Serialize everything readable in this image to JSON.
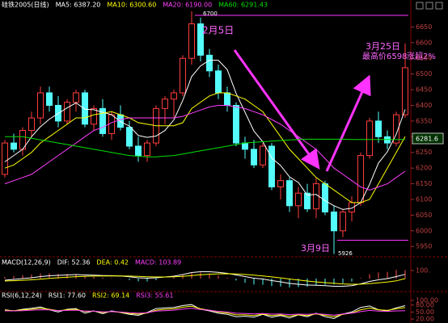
{
  "chart_data": [
    {
      "type": "candlestick",
      "title": "硅铁2005(日线)",
      "open": [
        6180,
        6280,
        6260,
        6320,
        6360,
        6440,
        6400,
        6350,
        6410,
        6440,
        6340,
        6390,
        6310,
        6370,
        6330,
        6270,
        6240,
        6280,
        6390,
        6420,
        6440,
        6550,
        6660,
        6560,
        6510,
        6440,
        6400,
        6280,
        6260,
        6210,
        6270,
        6140,
        6160,
        6080,
        6120,
        6070,
        6150,
        6060,
        6000,
        6060,
        6090,
        6240,
        6350,
        6300,
        6280,
        6370
      ],
      "high": [
        6290,
        6310,
        6330,
        6380,
        6460,
        6460,
        6430,
        6420,
        6450,
        6450,
        6400,
        6420,
        6380,
        6400,
        6350,
        6300,
        6290,
        6400,
        6430,
        6450,
        6560,
        6700,
        6680,
        6580,
        6530,
        6460,
        6410,
        6300,
        6290,
        6280,
        6280,
        6180,
        6170,
        6140,
        6150,
        6170,
        6160,
        6080,
        6070,
        6110,
        6250,
        6360,
        6380,
        6320,
        6380,
        6598
      ],
      "low": [
        6170,
        6250,
        6240,
        6300,
        6340,
        6380,
        6330,
        6340,
        6380,
        6330,
        6320,
        6300,
        6290,
        6320,
        6260,
        6220,
        6220,
        6270,
        6340,
        6360,
        6430,
        6530,
        6540,
        6490,
        6420,
        6380,
        6270,
        6230,
        6200,
        6200,
        6130,
        6100,
        6060,
        6040,
        6060,
        6040,
        6050,
        5926,
        5980,
        6030,
        6080,
        6230,
        6280,
        6260,
        6270,
        6360
      ],
      "close": [
        6280,
        6260,
        6320,
        6360,
        6440,
        6400,
        6350,
        6410,
        6440,
        6340,
        6390,
        6310,
        6370,
        6330,
        6270,
        6240,
        6280,
        6390,
        6420,
        6440,
        6550,
        6660,
        6560,
        6510,
        6440,
        6400,
        6280,
        6260,
        6210,
        6270,
        6140,
        6160,
        6080,
        6120,
        6070,
        6150,
        6060,
        6000,
        6060,
        6090,
        6240,
        6350,
        6300,
        6280,
        6370,
        6520
      ],
      "up_color": "#ff3c3c",
      "down_color": "#54fcfc",
      "series": [
        {
          "name": "MA5: 6387.20",
          "color": "#ffffff",
          "values": [
            6220,
            6240,
            6260,
            6300,
            6332,
            6356,
            6374,
            6392,
            6408,
            6388,
            6386,
            6378,
            6370,
            6348,
            6334,
            6304,
            6298,
            6302,
            6320,
            6354,
            6416,
            6492,
            6526,
            6544,
            6544,
            6514,
            6438,
            6378,
            6318,
            6284,
            6232,
            6208,
            6172,
            6154,
            6114,
            6116,
            6096,
            6080,
            6068,
            6072,
            6090,
            6148,
            6216,
            6252,
            6308,
            6387.2
          ]
        },
        {
          "name": "MA10: 6300.60",
          "color": "#ffff00",
          "values": [
            6200,
            6210,
            6230,
            6250,
            6280,
            6300,
            6320,
            6340,
            6360,
            6360,
            6370,
            6375,
            6380,
            6370,
            6360,
            6345,
            6340,
            6335,
            6335,
            6335,
            6345,
            6390,
            6410,
            6430,
            6440,
            6440,
            6430,
            6420,
            6400,
            6380,
            6340,
            6300,
            6260,
            6230,
            6200,
            6170,
            6150,
            6130,
            6110,
            6090,
            6090,
            6100,
            6150,
            6200,
            6250,
            6300.6
          ]
        },
        {
          "name": "MA20: 6190.00",
          "color": "#ff40ff",
          "values": [
            6150,
            6160,
            6170,
            6180,
            6200,
            6220,
            6240,
            6260,
            6280,
            6300,
            6320,
            6330,
            6345,
            6355,
            6360,
            6360,
            6360,
            6360,
            6360,
            6360,
            6365,
            6375,
            6385,
            6395,
            6400,
            6400,
            6395,
            6390,
            6380,
            6370,
            6355,
            6340,
            6320,
            6300,
            6280,
            6260,
            6230,
            6200,
            6180,
            6160,
            6140,
            6130,
            6140,
            6150,
            6170,
            6190
          ]
        },
        {
          "name": "MA60: 6291.43",
          "color": "#00e000",
          "values": [
            6300,
            6300,
            6300,
            6295,
            6290,
            6285,
            6280,
            6275,
            6270,
            6265,
            6260,
            6255,
            6250,
            6245,
            6240,
            6238,
            6236,
            6236,
            6238,
            6240,
            6245,
            6250,
            6255,
            6260,
            6265,
            6270,
            6275,
            6280,
            6282,
            6284,
            6286,
            6288,
            6290,
            6291,
            6292,
            6292,
            6292,
            6292,
            6292,
            6291,
            6291,
            6291,
            6291,
            6291,
            6291,
            6291.43
          ]
        }
      ],
      "ylim": [
        5930,
        6700
      ],
      "yticks": [
        6650,
        6600,
        6550,
        6500,
        6450,
        6400,
        6350,
        6300,
        6250,
        6200,
        6150,
        6100,
        6050,
        6000,
        5950
      ],
      "annotations": [
        {
          "text": "2月5日",
          "color": "#ff66ff"
        },
        {
          "text": "6700",
          "color": "#ffffff"
        },
        {
          "text": "3月25日",
          "color": "#ff66ff"
        },
        {
          "text": "最高价6598",
          "color": "#ff66ff"
        },
        {
          "text": "涨超2%",
          "color": "#ff66ff"
        },
        {
          "text": "3月9日",
          "color": "#ff66ff"
        },
        {
          "text": "5926",
          "color": "#ffffff"
        },
        {
          "text": "6281.6",
          "color": "#ffffff"
        }
      ]
    },
    {
      "type": "macd",
      "title": "MACD(12,26,9)",
      "series": [
        {
          "name": "DIF: 52.36",
          "color": "#ffffff",
          "values": [
            -20,
            -10,
            0,
            10,
            25,
            35,
            40,
            45,
            50,
            45,
            42,
            38,
            36,
            32,
            22,
            10,
            5,
            10,
            20,
            30,
            50,
            75,
            85,
            85,
            78,
            65,
            45,
            25,
            5,
            -5,
            -25,
            -40,
            -60,
            -70,
            -80,
            -82,
            -88,
            -95,
            -95,
            -88,
            -65,
            -35,
            -15,
            0,
            25,
            52.36
          ]
        },
        {
          "name": "DEA: 0.42",
          "color": "#ffff00",
          "values": [
            -30,
            -26,
            -21,
            -15,
            -7,
            2,
            10,
            17,
            24,
            28,
            31,
            32,
            33,
            33,
            31,
            27,
            23,
            20,
            20,
            22,
            28,
            37,
            47,
            54,
            59,
            60,
            57,
            51,
            42,
            33,
            21,
            9,
            -5,
            -18,
            -30,
            -41,
            -50,
            -59,
            -66,
            -70,
            -69,
            -62,
            -53,
            -42,
            -28,
            0.42
          ]
        }
      ],
      "histogram": {
        "name": "MACD: 103.89",
        "color": "#ff40ff",
        "up_color": "#ff5050",
        "down_color": "#54fcfc",
        "values": [
          20,
          32,
          42,
          50,
          64,
          66,
          60,
          56,
          52,
          34,
          22,
          12,
          6,
          -2,
          -18,
          -34,
          -36,
          -20,
          0,
          16,
          44,
          76,
          76,
          62,
          38,
          10,
          -24,
          -52,
          -74,
          -76,
          -92,
          -98,
          -110,
          -104,
          -100,
          -82,
          -76,
          -72,
          -58,
          -36,
          8,
          54,
          76,
          84,
          106,
          103.89
        ]
      },
      "ylim": [
        -130,
        130
      ],
      "yticks": [
        {
          "value": 100,
          "label": "100."
        }
      ]
    },
    {
      "type": "line",
      "title": "RSI(6,12,24)",
      "series": [
        {
          "name": "RSI1: 77.60",
          "color": "#ffffff",
          "values": [
            60,
            55,
            62,
            66,
            72,
            60,
            50,
            62,
            65,
            45,
            55,
            43,
            55,
            48,
            40,
            36,
            48,
            65,
            68,
            70,
            78,
            82,
            62,
            55,
            45,
            40,
            30,
            32,
            28,
            40,
            28,
            35,
            25,
            38,
            30,
            45,
            30,
            22,
            42,
            50,
            70,
            76,
            60,
            55,
            68,
            77.6
          ]
        },
        {
          "name": "RSI2: 69.14",
          "color": "#ffff00",
          "values": [
            58,
            56,
            59,
            62,
            66,
            62,
            56,
            60,
            62,
            52,
            54,
            48,
            52,
            49,
            44,
            41,
            46,
            58,
            62,
            64,
            71,
            75,
            64,
            58,
            50,
            46,
            38,
            38,
            35,
            41,
            35,
            38,
            32,
            38,
            35,
            42,
            36,
            30,
            40,
            46,
            60,
            67,
            60,
            57,
            64,
            69.14
          ]
        },
        {
          "name": "RSI3: 55.61",
          "color": "#ff40ff",
          "values": [
            55,
            55,
            56,
            58,
            60,
            59,
            56,
            57,
            58,
            54,
            54,
            51,
            52,
            50,
            47,
            45,
            47,
            54,
            56,
            58,
            63,
            66,
            61,
            58,
            53,
            50,
            45,
            44,
            42,
            44,
            41,
            42,
            39,
            41,
            40,
            43,
            40,
            37,
            42,
            45,
            52,
            57,
            54,
            53,
            55,
            55.61
          ]
        }
      ],
      "ylim": [
        10,
        100
      ],
      "yticks": [
        {
          "value": 100,
          "label": "100.00"
        },
        {
          "value": 80,
          "label": "80.00"
        },
        {
          "value": 50,
          "label": "50.00"
        },
        {
          "value": 20,
          "label": "20.00"
        }
      ]
    }
  ]
}
